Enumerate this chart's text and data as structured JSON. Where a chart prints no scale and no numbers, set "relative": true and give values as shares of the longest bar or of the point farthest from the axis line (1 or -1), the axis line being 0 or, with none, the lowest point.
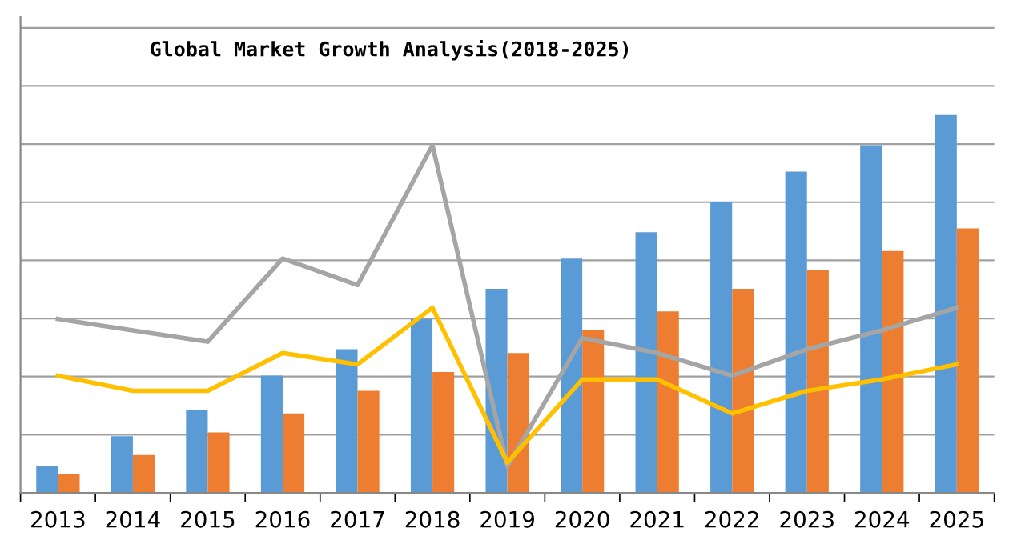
{
  "chart_data": {
    "type": "bar",
    "title": "Global Market Growth Analysis(2018-2025)",
    "relative": true,
    "grid": "y",
    "legend": false,
    "categories": [
      "2013",
      "2014",
      "2015",
      "2016",
      "2017",
      "2018",
      "2019",
      "2020",
      "2021",
      "2022",
      "2023",
      "2024",
      "2025"
    ],
    "series": [
      {
        "color": "#5b9bd5",
        "values": [
          0.07,
          0.15,
          0.22,
          0.31,
          0.38,
          0.46,
          0.54,
          0.62,
          0.69,
          0.77,
          0.85,
          0.92,
          1.0
        ]
      },
      {
        "color": "#ed7d31",
        "values": [
          0.05,
          0.1,
          0.16,
          0.21,
          0.27,
          0.32,
          0.37,
          0.43,
          0.48,
          0.54,
          0.59,
          0.64,
          0.7
        ]
      },
      {
        "type": "line",
        "color": "#a5a5a5",
        "values": [
          0.46,
          0.43,
          0.4,
          0.62,
          0.55,
          0.92,
          0.07,
          0.41,
          0.37,
          0.31,
          0.38,
          0.43,
          0.49
        ]
      },
      {
        "type": "line",
        "color": "#ffc000",
        "values": [
          0.31,
          0.27,
          0.27,
          0.37,
          0.34,
          0.49,
          0.08,
          0.3,
          0.3,
          0.21,
          0.27,
          0.3,
          0.34
        ]
      }
    ]
  }
}
